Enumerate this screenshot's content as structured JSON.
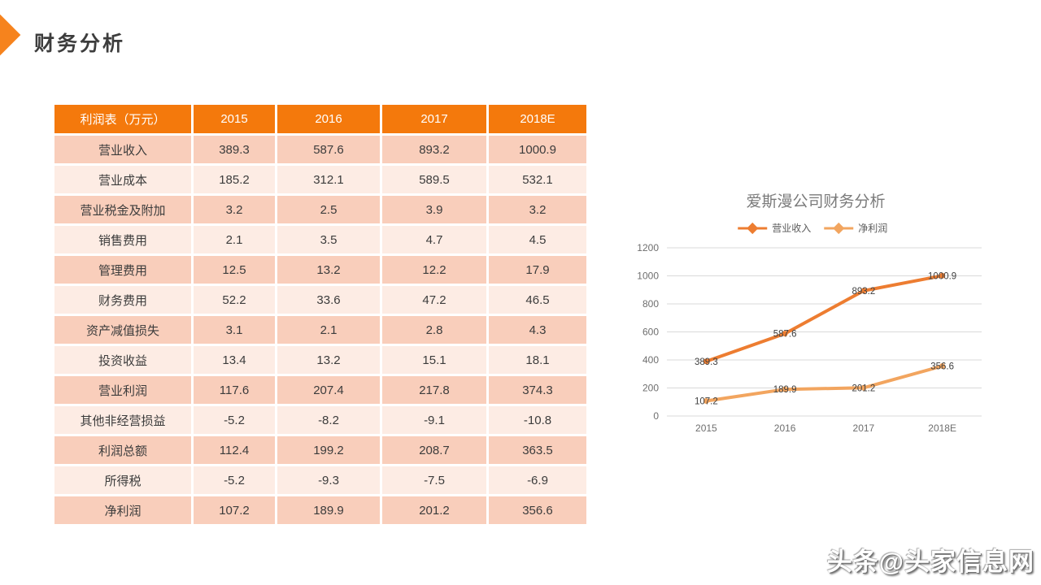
{
  "page": {
    "title": "财务分析",
    "watermark": "头条@头家信息网"
  },
  "colors": {
    "accent_diamond": "#f6831d",
    "table_header_bg": "#f4790c",
    "table_band_dark": "#f9cebb",
    "table_band_light": "#fdece4",
    "table_text": "#3c3c3c",
    "grid_line": "#d9d9d9",
    "axis_text": "#6e6e6e",
    "chart_title_text": "#7a7a7a",
    "data_label_text": "#404040"
  },
  "table": {
    "header": [
      "利润表（万元）",
      "2015",
      "2016",
      "2017",
      "2018E"
    ],
    "rows": [
      {
        "label": "营业收入",
        "values": [
          "389.3",
          "587.6",
          "893.2",
          "1000.9"
        ]
      },
      {
        "label": "营业成本",
        "values": [
          "185.2",
          "312.1",
          "589.5",
          "532.1"
        ]
      },
      {
        "label": "营业税金及附加",
        "values": [
          "3.2",
          "2.5",
          "3.9",
          "3.2"
        ]
      },
      {
        "label": "销售费用",
        "values": [
          "2.1",
          "3.5",
          "4.7",
          "4.5"
        ]
      },
      {
        "label": "管理费用",
        "values": [
          "12.5",
          "13.2",
          "12.2",
          "17.9"
        ]
      },
      {
        "label": "财务费用",
        "values": [
          "52.2",
          "33.6",
          "47.2",
          "46.5"
        ]
      },
      {
        "label": "资产减值损失",
        "values": [
          "3.1",
          "2.1",
          "2.8",
          "4.3"
        ]
      },
      {
        "label": "投资收益",
        "values": [
          "13.4",
          "13.2",
          "15.1",
          "18.1"
        ]
      },
      {
        "label": "营业利润",
        "values": [
          "117.6",
          "207.4",
          "217.8",
          "374.3"
        ]
      },
      {
        "label": "其他非经营损益",
        "values": [
          "-5.2",
          "-8.2",
          "-9.1",
          "-10.8"
        ]
      },
      {
        "label": "利润总额",
        "values": [
          "112.4",
          "199.2",
          "208.7",
          "363.5"
        ]
      },
      {
        "label": "所得税",
        "values": [
          "-5.2",
          "-9.3",
          "-7.5",
          "-6.9"
        ]
      },
      {
        "label": "净利润",
        "values": [
          "107.2",
          "189.9",
          "201.2",
          "356.6"
        ]
      }
    ]
  },
  "chart_data": {
    "type": "line",
    "title": "爱斯漫公司财务分析",
    "categories": [
      "2015",
      "2016",
      "2017",
      "2018E"
    ],
    "series": [
      {
        "name": "营业收入",
        "values": [
          389.3,
          587.6,
          893.2,
          1000.9
        ],
        "color": "#ed7d31"
      },
      {
        "name": "净利润",
        "values": [
          107.2,
          189.9,
          201.2,
          356.6
        ],
        "color": "#f2a55f"
      }
    ],
    "ylim": [
      0,
      1200
    ],
    "ytick_interval": 200,
    "yticks": [
      0,
      200,
      400,
      600,
      800,
      1000,
      1200
    ],
    "grid": true,
    "legend_position": "top",
    "data_labels": true
  }
}
